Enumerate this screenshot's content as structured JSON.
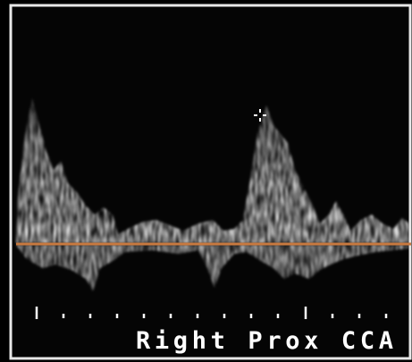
{
  "caption": "Right Prox CCA"
}
